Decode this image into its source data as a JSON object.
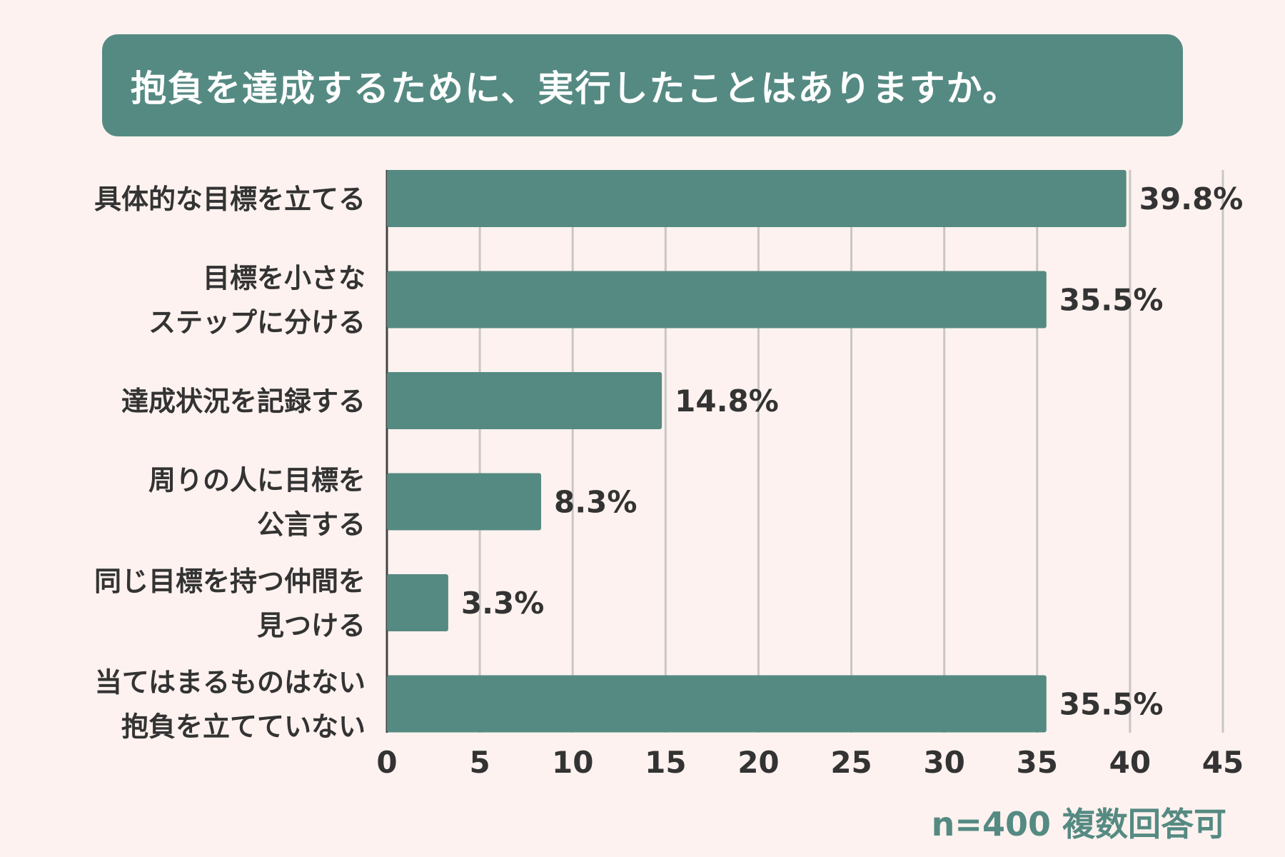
{
  "chart_data": {
    "type": "bar",
    "orientation": "horizontal",
    "title": "抱負を達成するために、実行したことはありますか。",
    "categories": [
      [
        "具体的な目標を立てる"
      ],
      [
        "目標を小さな",
        "ステップに分ける"
      ],
      [
        "達成状況を記録する"
      ],
      [
        "周りの人に目標を",
        "公言する"
      ],
      [
        "同じ目標を持つ仲間を",
        "見つける"
      ],
      [
        "当てはまるものはない",
        "抱負を立てていない"
      ]
    ],
    "values": [
      39.8,
      35.5,
      14.8,
      8.3,
      3.3,
      35.5
    ],
    "value_labels": [
      "39.8%",
      "35.5%",
      "14.8%",
      "8.3%",
      "3.3%",
      "35.5%"
    ],
    "xlim": [
      0,
      45
    ],
    "xticks": [
      "0",
      "5",
      "10",
      "15",
      "20",
      "25",
      "30",
      "35",
      "40",
      "45"
    ],
    "grid": true,
    "xlabel": "",
    "ylabel": "",
    "note": "n=400 複数回答可",
    "colors": {
      "bar": "#558a82",
      "grid": "#c9c6c4",
      "text": "#333333"
    }
  }
}
